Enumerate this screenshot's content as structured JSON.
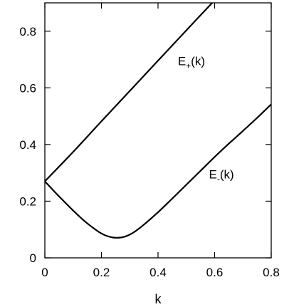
{
  "chart_data": {
    "type": "line",
    "title": "",
    "xlabel": "k",
    "ylabel": "",
    "xlim": [
      0,
      0.8
    ],
    "ylim": [
      0,
      0.9
    ],
    "xticks": [
      "0",
      "0.2",
      "0.4",
      "0.6",
      "0.8"
    ],
    "xtick_values": [
      0,
      0.2,
      0.4,
      0.6,
      0.8
    ],
    "yticks": [
      "0",
      "0.2",
      "0.4",
      "0.6",
      "0.8"
    ],
    "ytick_values": [
      0,
      0.2,
      0.4,
      0.6,
      0.8
    ],
    "grid": false,
    "legend": "none",
    "series": [
      {
        "name": "E+(k)",
        "label_main": "E",
        "label_sub": "+",
        "label_tail": "(k)",
        "label_at": [
          0.47,
          0.68
        ],
        "x": [
          0,
          0.1,
          0.2,
          0.3,
          0.4,
          0.5,
          0.6,
          0.665
        ],
        "y": [
          0.27,
          0.374,
          0.482,
          0.589,
          0.696,
          0.803,
          0.909,
          0.978
        ]
      },
      {
        "name": "E-(k)",
        "label_main": "E",
        "label_sub": "-",
        "label_tail": "(k)",
        "label_at": [
          0.58,
          0.28
        ],
        "x": [
          0,
          0.03,
          0.06,
          0.1,
          0.14,
          0.18,
          0.2,
          0.22,
          0.24,
          0.26,
          0.28,
          0.3,
          0.32,
          0.35,
          0.4,
          0.45,
          0.5,
          0.55,
          0.6,
          0.65,
          0.7,
          0.75,
          0.8
        ],
        "y": [
          0.27,
          0.238,
          0.207,
          0.167,
          0.13,
          0.099,
          0.086,
          0.077,
          0.072,
          0.071,
          0.074,
          0.082,
          0.094,
          0.117,
          0.161,
          0.209,
          0.258,
          0.307,
          0.356,
          0.403,
          0.448,
          0.494,
          0.542
        ]
      }
    ]
  }
}
